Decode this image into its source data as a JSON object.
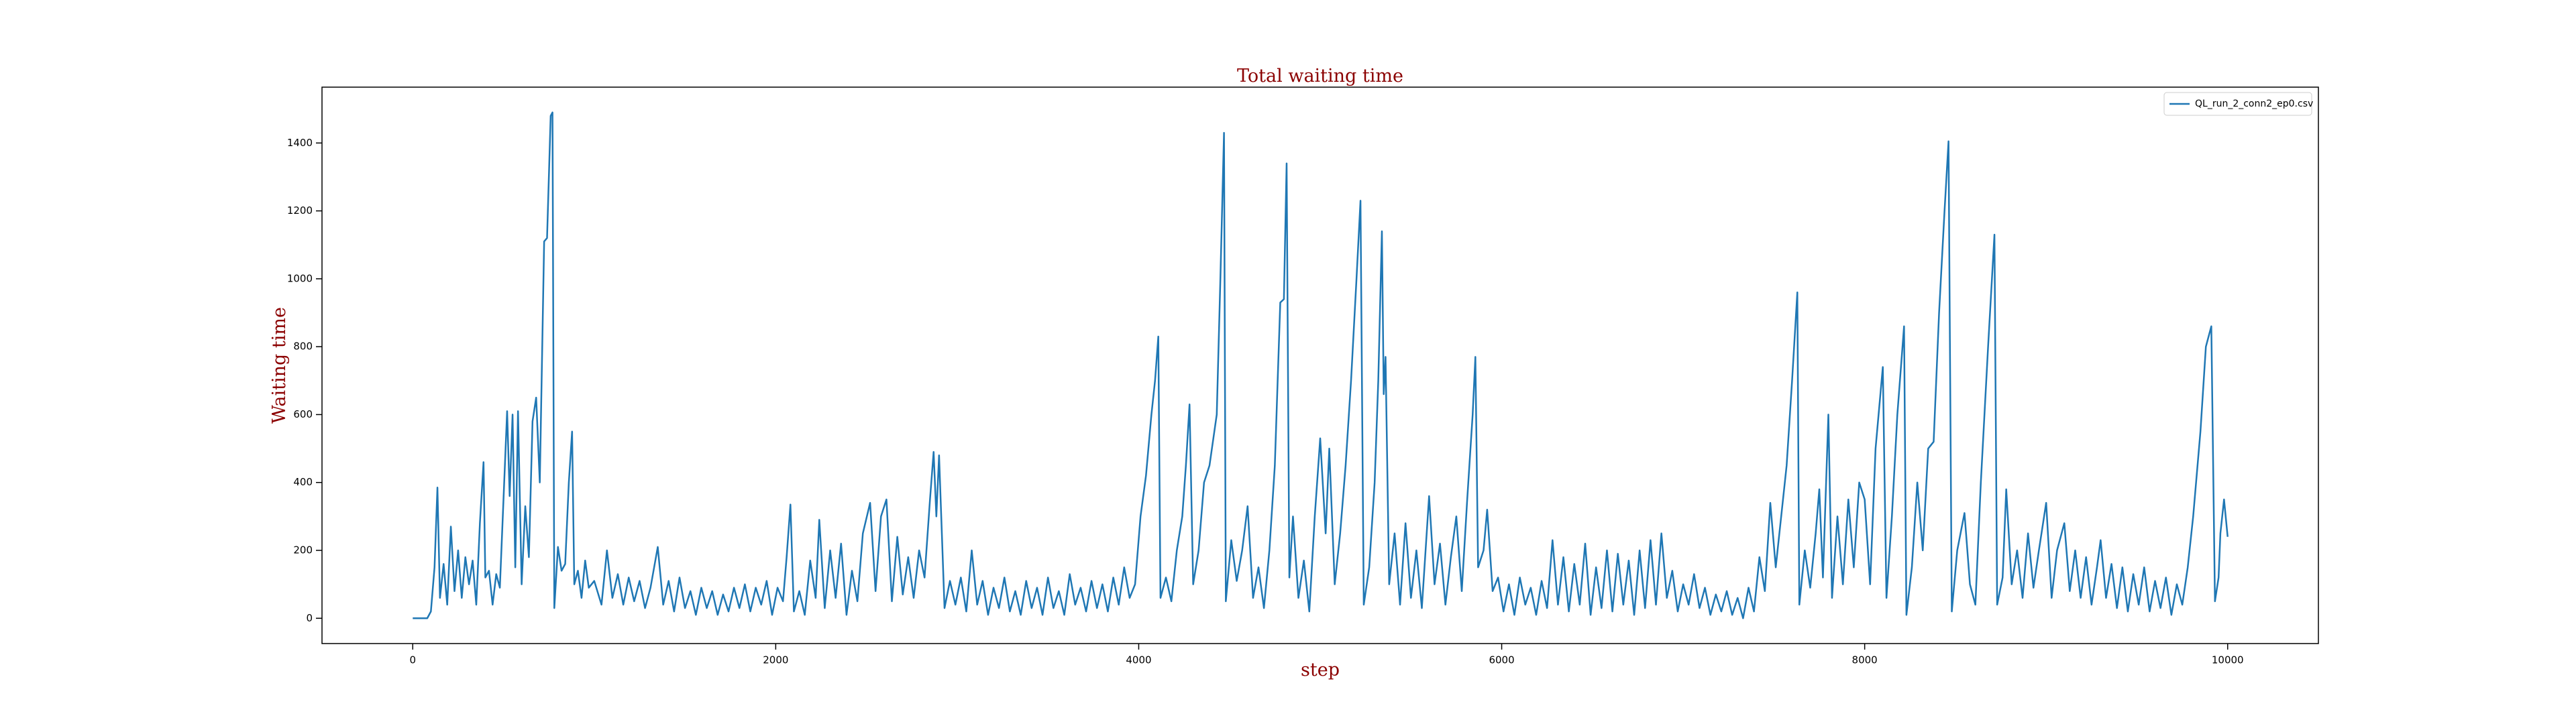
{
  "chart_data": {
    "type": "line",
    "title": "Total waiting time",
    "x_label": "step",
    "y_label": "Waiting time",
    "legend": "upper right",
    "xlim": [
      -500,
      10500
    ],
    "ylim": [
      -74.5,
      1564.5
    ],
    "xticks": [
      0,
      2000,
      4000,
      6000,
      8000,
      10000
    ],
    "yticks": [
      0,
      200,
      400,
      600,
      800,
      1000,
      1200,
      1400
    ],
    "x": [
      0,
      80,
      100,
      120,
      136,
      150,
      170,
      190,
      210,
      230,
      250,
      270,
      290,
      310,
      330,
      350,
      370,
      390,
      400,
      420,
      440,
      460,
      480,
      500,
      520,
      534,
      550,
      565,
      580,
      600,
      620,
      640,
      660,
      680,
      700,
      724,
      740,
      760,
      770,
      780,
      800,
      820,
      840,
      860,
      878,
      890,
      910,
      930,
      950,
      970,
      1000,
      1040,
      1070,
      1100,
      1130,
      1160,
      1190,
      1220,
      1250,
      1280,
      1310,
      1350,
      1380,
      1410,
      1440,
      1470,
      1500,
      1530,
      1560,
      1590,
      1620,
      1650,
      1680,
      1710,
      1740,
      1770,
      1800,
      1830,
      1860,
      1890,
      1920,
      1950,
      1980,
      2010,
      2040,
      2060,
      2081,
      2100,
      2130,
      2160,
      2190,
      2220,
      2240,
      2270,
      2300,
      2330,
      2360,
      2390,
      2420,
      2450,
      2480,
      2520,
      2550,
      2580,
      2610,
      2640,
      2670,
      2700,
      2730,
      2760,
      2790,
      2820,
      2850,
      2870,
      2885,
      2900,
      2930,
      2960,
      2990,
      3020,
      3050,
      3080,
      3110,
      3140,
      3170,
      3200,
      3230,
      3260,
      3290,
      3320,
      3350,
      3380,
      3410,
      3440,
      3470,
      3500,
      3530,
      3560,
      3590,
      3620,
      3650,
      3680,
      3710,
      3740,
      3770,
      3800,
      3830,
      3860,
      3890,
      3920,
      3950,
      3980,
      4010,
      4040,
      4070,
      4090,
      4108,
      4120,
      4150,
      4180,
      4210,
      4240,
      4260,
      4280,
      4300,
      4330,
      4360,
      4390,
      4430,
      4450,
      4470,
      4480,
      4510,
      4540,
      4570,
      4600,
      4630,
      4660,
      4690,
      4720,
      4750,
      4780,
      4800,
      4815,
      4830,
      4850,
      4880,
      4910,
      4940,
      4970,
      5000,
      5030,
      5050,
      5080,
      5110,
      5140,
      5170,
      5200,
      5222,
      5240,
      5270,
      5300,
      5320,
      5340,
      5350,
      5360,
      5380,
      5410,
      5440,
      5470,
      5500,
      5530,
      5560,
      5600,
      5630,
      5660,
      5690,
      5720,
      5750,
      5780,
      5810,
      5840,
      5855,
      5870,
      5900,
      5920,
      5950,
      5980,
      6010,
      6040,
      6070,
      6100,
      6130,
      6160,
      6190,
      6220,
      6250,
      6280,
      6310,
      6340,
      6370,
      6400,
      6430,
      6460,
      6490,
      6520,
      6550,
      6580,
      6610,
      6640,
      6670,
      6700,
      6730,
      6760,
      6790,
      6820,
      6850,
      6880,
      6910,
      6940,
      6970,
      7000,
      7030,
      7060,
      7090,
      7120,
      7150,
      7180,
      7210,
      7240,
      7270,
      7300,
      7330,
      7360,
      7390,
      7420,
      7450,
      7480,
      7510,
      7540,
      7570,
      7600,
      7629,
      7640,
      7670,
      7700,
      7730,
      7750,
      7770,
      7800,
      7820,
      7850,
      7880,
      7910,
      7940,
      7970,
      8000,
      8030,
      8060,
      8100,
      8120,
      8150,
      8180,
      8217,
      8230,
      8260,
      8290,
      8320,
      8350,
      8380,
      8410,
      8440,
      8462,
      8480,
      8510,
      8550,
      8580,
      8610,
      8640,
      8680,
      8715,
      8730,
      8760,
      8780,
      8810,
      8840,
      8870,
      8900,
      8930,
      8960,
      9000,
      9030,
      9060,
      9100,
      9130,
      9160,
      9190,
      9220,
      9250,
      9280,
      9300,
      9330,
      9360,
      9390,
      9420,
      9450,
      9480,
      9510,
      9540,
      9570,
      9600,
      9630,
      9660,
      9690,
      9720,
      9750,
      9780,
      9810,
      9850,
      9880,
      9910,
      9930,
      9950,
      9960,
      9980,
      10000
    ],
    "series": [
      {
        "name": "QL_run_2_conn2_ep0.csv",
        "color": "#1f77b4",
        "values": [
          0,
          0,
          20,
          150,
          385,
          60,
          160,
          40,
          270,
          80,
          200,
          60,
          180,
          100,
          170,
          40,
          280,
          460,
          120,
          140,
          40,
          130,
          90,
          350,
          610,
          360,
          600,
          150,
          610,
          100,
          330,
          180,
          580,
          650,
          400,
          1110,
          1120,
          1480,
          1490,
          30,
          210,
          140,
          160,
          400,
          550,
          100,
          140,
          60,
          170,
          90,
          110,
          40,
          200,
          60,
          130,
          40,
          120,
          50,
          110,
          30,
          90,
          210,
          40,
          110,
          20,
          120,
          30,
          80,
          10,
          90,
          30,
          80,
          10,
          70,
          20,
          90,
          30,
          100,
          20,
          90,
          40,
          110,
          10,
          90,
          50,
          180,
          335,
          20,
          80,
          10,
          170,
          60,
          290,
          30,
          200,
          60,
          220,
          10,
          140,
          50,
          250,
          340,
          80,
          300,
          350,
          50,
          240,
          70,
          180,
          60,
          200,
          120,
          350,
          490,
          300,
          480,
          30,
          110,
          40,
          120,
          20,
          200,
          40,
          110,
          10,
          90,
          30,
          120,
          20,
          80,
          10,
          110,
          30,
          90,
          10,
          120,
          30,
          80,
          10,
          130,
          40,
          90,
          20,
          110,
          30,
          100,
          20,
          120,
          40,
          150,
          60,
          100,
          300,
          420,
          600,
          700,
          830,
          60,
          120,
          50,
          200,
          300,
          450,
          630,
          100,
          200,
          400,
          450,
          600,
          1000,
          1430,
          50,
          230,
          110,
          200,
          330,
          60,
          150,
          30,
          200,
          450,
          930,
          940,
          1340,
          120,
          300,
          60,
          170,
          20,
          300,
          530,
          250,
          500,
          100,
          250,
          450,
          700,
          1000,
          1230,
          40,
          150,
          400,
          700,
          1140,
          660,
          770,
          100,
          250,
          40,
          280,
          60,
          200,
          30,
          360,
          100,
          220,
          40,
          180,
          300,
          80,
          350,
          600,
          770,
          150,
          200,
          320,
          80,
          120,
          20,
          100,
          10,
          120,
          40,
          90,
          10,
          110,
          30,
          230,
          40,
          180,
          20,
          160,
          40,
          220,
          10,
          150,
          30,
          200,
          20,
          190,
          40,
          170,
          10,
          200,
          30,
          230,
          40,
          250,
          60,
          140,
          20,
          100,
          40,
          130,
          30,
          90,
          10,
          70,
          20,
          80,
          10,
          60,
          0,
          90,
          20,
          180,
          80,
          340,
          150,
          300,
          450,
          700,
          960,
          40,
          200,
          90,
          250,
          380,
          120,
          600,
          60,
          300,
          100,
          350,
          150,
          400,
          350,
          100,
          500,
          740,
          60,
          300,
          600,
          860,
          10,
          150,
          400,
          200,
          500,
          520,
          900,
          1200,
          1405,
          20,
          200,
          310,
          100,
          40,
          400,
          800,
          1130,
          40,
          120,
          380,
          100,
          200,
          60,
          250,
          90,
          200,
          340,
          60,
          200,
          280,
          80,
          200,
          60,
          180,
          40,
          150,
          230,
          60,
          160,
          30,
          150,
          20,
          130,
          40,
          150,
          20,
          110,
          30,
          120,
          10,
          100,
          40,
          150,
          300,
          550,
          800,
          860,
          50,
          120,
          250,
          350,
          240
        ]
      }
    ]
  }
}
